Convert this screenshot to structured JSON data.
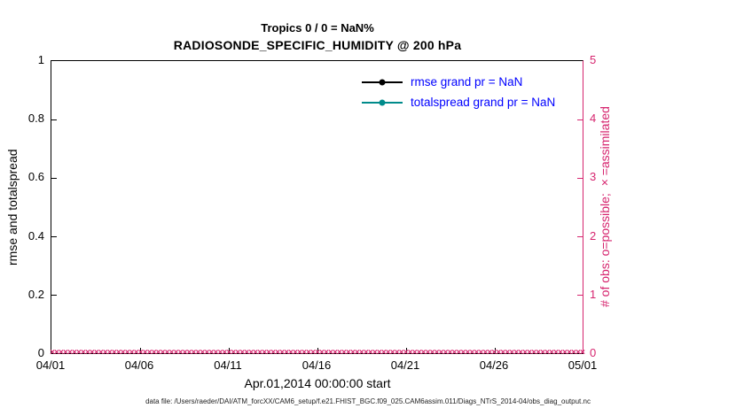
{
  "chart_data": {
    "type": "line",
    "title": "Tropics 0 / 0 = NaN%",
    "subtitle": "RADIOSONDE_SPECIFIC_HUMIDITY @ 200 hPa",
    "xlabel": "Apr.01,2014 00:00:00 start",
    "x_axis": {
      "ticks": [
        "04/01",
        "04/06",
        "04/11",
        "04/16",
        "04/21",
        "04/26",
        "05/01"
      ],
      "color": "#000000"
    },
    "left_axis": {
      "label": "rmse and totalspread",
      "lim": [
        0,
        1
      ],
      "ticks": [
        "0",
        "0.2",
        "0.4",
        "0.6",
        "0.8",
        "1"
      ],
      "color": "#000000"
    },
    "right_axis": {
      "label": "# of obs: o=possible; ×=assimilated",
      "lim": [
        0,
        5
      ],
      "ticks": [
        "0",
        "1",
        "2",
        "3",
        "4",
        "5"
      ],
      "color": "#d6246e"
    },
    "series": [
      {
        "name": "rmse grand pr = NaN",
        "color": "#000000",
        "values": []
      },
      {
        "name": "totalspread grand pr = NaN",
        "color": "#008b8b",
        "values": []
      }
    ],
    "obs_markers": {
      "symbol": "×",
      "color": "#d6246e",
      "y_value": 0,
      "count": 121,
      "note": "dense row of assimilated-obs markers along y=0 spanning full x range"
    },
    "grid": false,
    "legend_position": "upper-center-right"
  },
  "legend": {
    "items": [
      {
        "label": "rmse grand pr = NaN",
        "marker_color": "#000000",
        "text_color": "#0000ff"
      },
      {
        "label": "totalspread grand pr = NaN",
        "marker_color": "#008b8b",
        "text_color": "#0000ff"
      }
    ]
  },
  "footer": {
    "data_file": "data file: /Users/raeder/DAI/ATM_forcXX/CAM6_setup/f.e21.FHIST_BGC.f09_025.CAM6assim.011/Diags_NTrS_2014-04/obs_diag_output.nc"
  }
}
